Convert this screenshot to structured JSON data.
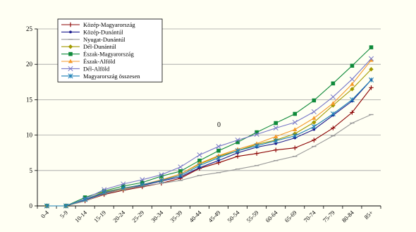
{
  "chart_data": {
    "type": "line",
    "title": "",
    "xlabel": "",
    "ylabel": "",
    "ylim": [
      0,
      25
    ],
    "yticks": [
      0,
      5,
      10,
      15,
      20,
      25
    ],
    "grid": "horizontal",
    "legend_position": "top-left",
    "annotation": "0",
    "categories": [
      "0-4",
      "5-9",
      "10-14",
      "15-19",
      "20-24",
      "25-29",
      "30-34",
      "35-39",
      "40-44",
      "45-49",
      "50-54",
      "55-59",
      "60-64",
      "65-69",
      "70-74",
      "75-79",
      "80-84",
      "85+"
    ],
    "series": [
      {
        "name": "Közép-Magyarország",
        "color": "#8b0000",
        "marker": "plus",
        "values": [
          0.0,
          0.0,
          0.7,
          1.6,
          2.2,
          2.7,
          3.2,
          3.9,
          5.3,
          6.1,
          7.0,
          7.4,
          7.9,
          8.2,
          9.3,
          11.0,
          13.2,
          16.7
        ]
      },
      {
        "name": "Közép-Dunántúl",
        "color": "#1f1f8f",
        "marker": "dot",
        "values": [
          0.0,
          0.0,
          0.8,
          1.8,
          2.4,
          2.9,
          3.5,
          4.1,
          5.4,
          6.4,
          7.5,
          8.3,
          8.8,
          9.6,
          10.8,
          12.8,
          14.8,
          17.8
        ]
      },
      {
        "name": "Nyugat-Dunántúl",
        "color": "#999999",
        "marker": "dash",
        "values": [
          0.0,
          0.0,
          0.7,
          1.7,
          2.3,
          2.8,
          3.2,
          3.6,
          4.3,
          4.7,
          5.2,
          5.7,
          6.4,
          7.0,
          8.4,
          9.9,
          11.7,
          12.9
        ]
      },
      {
        "name": "Dél-Dunántúl",
        "color": "#a29a00",
        "marker": "diamond",
        "values": [
          0.0,
          0.0,
          0.9,
          2.0,
          2.5,
          3.0,
          3.6,
          4.5,
          5.9,
          7.0,
          7.8,
          8.7,
          9.3,
          10.2,
          11.8,
          14.2,
          16.5,
          19.3
        ]
      },
      {
        "name": "Észak-Magyarország",
        "color": "#0f8a3a",
        "marker": "square",
        "values": [
          0.0,
          0.0,
          1.2,
          2.1,
          2.8,
          3.3,
          4.2,
          4.9,
          6.4,
          7.8,
          9.0,
          10.4,
          11.7,
          13.0,
          14.9,
          17.3,
          19.8,
          22.4
        ]
      },
      {
        "name": "Észak-Alföld",
        "color": "#f59a2a",
        "marker": "triangle",
        "values": [
          0.0,
          0.0,
          0.9,
          1.9,
          2.4,
          3.0,
          3.7,
          4.5,
          6.0,
          7.1,
          8.0,
          8.8,
          9.8,
          10.8,
          12.4,
          14.5,
          17.2,
          20.6
        ]
      },
      {
        "name": "Dél-Alföld",
        "color": "#7878c8",
        "marker": "cross",
        "values": [
          0.0,
          0.0,
          1.0,
          2.3,
          3.1,
          3.7,
          4.4,
          5.5,
          7.2,
          8.4,
          9.3,
          10.1,
          11.0,
          11.8,
          13.3,
          15.4,
          17.9,
          20.8
        ]
      },
      {
        "name": "Magyarország összesen",
        "color": "#1a7fb5",
        "marker": "star",
        "values": [
          0.0,
          0.0,
          0.9,
          1.9,
          2.5,
          3.0,
          3.6,
          4.3,
          5.7,
          6.8,
          7.8,
          8.5,
          9.2,
          9.9,
          11.2,
          13.0,
          15.0,
          17.8
        ]
      }
    ]
  }
}
